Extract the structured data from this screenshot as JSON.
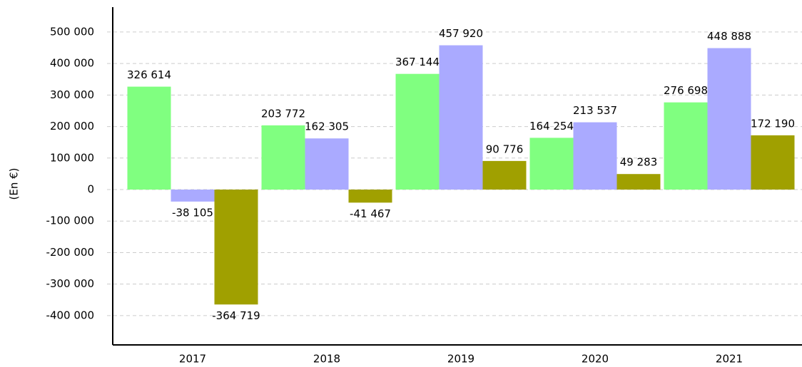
{
  "chart_data": {
    "type": "bar",
    "y_label": "(En €)",
    "categories": [
      "2017",
      "2018",
      "2019",
      "2020",
      "2021"
    ],
    "series": [
      {
        "color": "#80ff80",
        "values": [
          326614,
          203772,
          367144,
          164254,
          276698
        ],
        "value_labels": [
          "326 614",
          "203 772",
          "367 144",
          "164 254",
          "276 698"
        ]
      },
      {
        "color": "#aaaaff",
        "values": [
          -38105,
          162305,
          457920,
          213537,
          448888
        ],
        "value_labels": [
          "-38 105",
          "162 305",
          "457 920",
          "213 537",
          "448 888"
        ]
      },
      {
        "color": "#a0a000",
        "values": [
          -364719,
          -41467,
          90776,
          49283,
          172190
        ],
        "value_labels": [
          "-364 719",
          "-41 467",
          "90 776",
          "49 283",
          "172 190"
        ]
      }
    ],
    "ylim": [
      -493000,
      579000
    ],
    "yticks": [
      {
        "value": -400000,
        "label": "-400 000"
      },
      {
        "value": -300000,
        "label": "-300 000"
      },
      {
        "value": -200000,
        "label": "-200 000"
      },
      {
        "value": -100000,
        "label": "-100 000"
      },
      0,
      {
        "value": 100000,
        "label": "100 000"
      },
      {
        "value": 200000,
        "label": "200 000"
      },
      {
        "value": 300000,
        "label": "300 000"
      },
      {
        "value": 400000,
        "label": "400 000"
      },
      {
        "value": 500000,
        "label": "500 000"
      }
    ],
    "grid": true
  }
}
